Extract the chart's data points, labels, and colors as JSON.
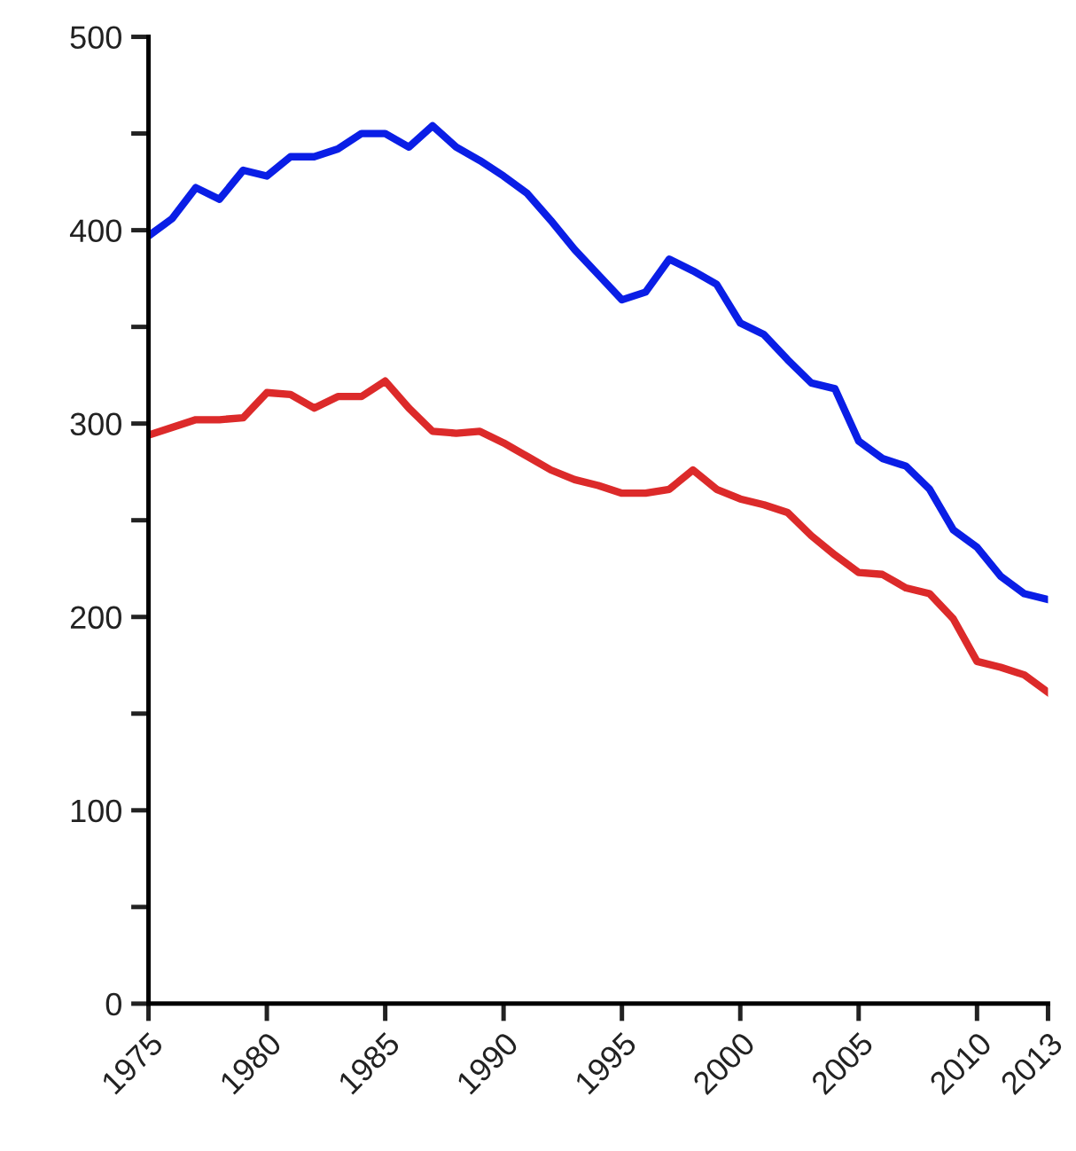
{
  "chart_data": {
    "type": "line",
    "x": [
      1975,
      1976,
      1977,
      1978,
      1979,
      1980,
      1981,
      1982,
      1983,
      1984,
      1985,
      1986,
      1987,
      1988,
      1989,
      1990,
      1991,
      1992,
      1993,
      1994,
      1995,
      1996,
      1997,
      1998,
      1999,
      2000,
      2001,
      2002,
      2003,
      2004,
      2005,
      2006,
      2007,
      2008,
      2009,
      2010,
      2011,
      2012,
      2013
    ],
    "series": [
      {
        "color": "#0a1ee6",
        "values": [
          397,
          406,
          422,
          416,
          431,
          428,
          438,
          438,
          442,
          450,
          450,
          443,
          454,
          443,
          436,
          428,
          419,
          405,
          390,
          377,
          364,
          368,
          385,
          379,
          372,
          352,
          346,
          333,
          321,
          318,
          291,
          282,
          278,
          266,
          245,
          236,
          221,
          212,
          209
        ]
      },
      {
        "color": "#dc2a2a",
        "values": [
          294,
          298,
          302,
          302,
          303,
          316,
          315,
          308,
          314,
          314,
          322,
          308,
          296,
          295,
          296,
          290,
          283,
          276,
          271,
          268,
          264,
          264,
          266,
          276,
          266,
          261,
          258,
          254,
          242,
          232,
          223,
          222,
          215,
          212,
          199,
          177,
          174,
          170,
          161
        ]
      }
    ],
    "xlim": [
      1975,
      2013
    ],
    "xticks": [
      1975,
      1980,
      1985,
      1990,
      1995,
      2000,
      2005,
      2010,
      2013
    ],
    "ylim": [
      0,
      500
    ],
    "yticks": [
      0,
      {
        "value": 50,
        "label": null
      },
      100,
      {
        "value": 150,
        "label": null
      },
      200,
      {
        "value": 250,
        "label": null
      },
      300,
      {
        "value": 350,
        "label": null
      },
      400,
      {
        "value": 450,
        "label": null
      },
      500
    ],
    "grid": false,
    "legend": false,
    "marker": "none",
    "line_style": "solid"
  }
}
